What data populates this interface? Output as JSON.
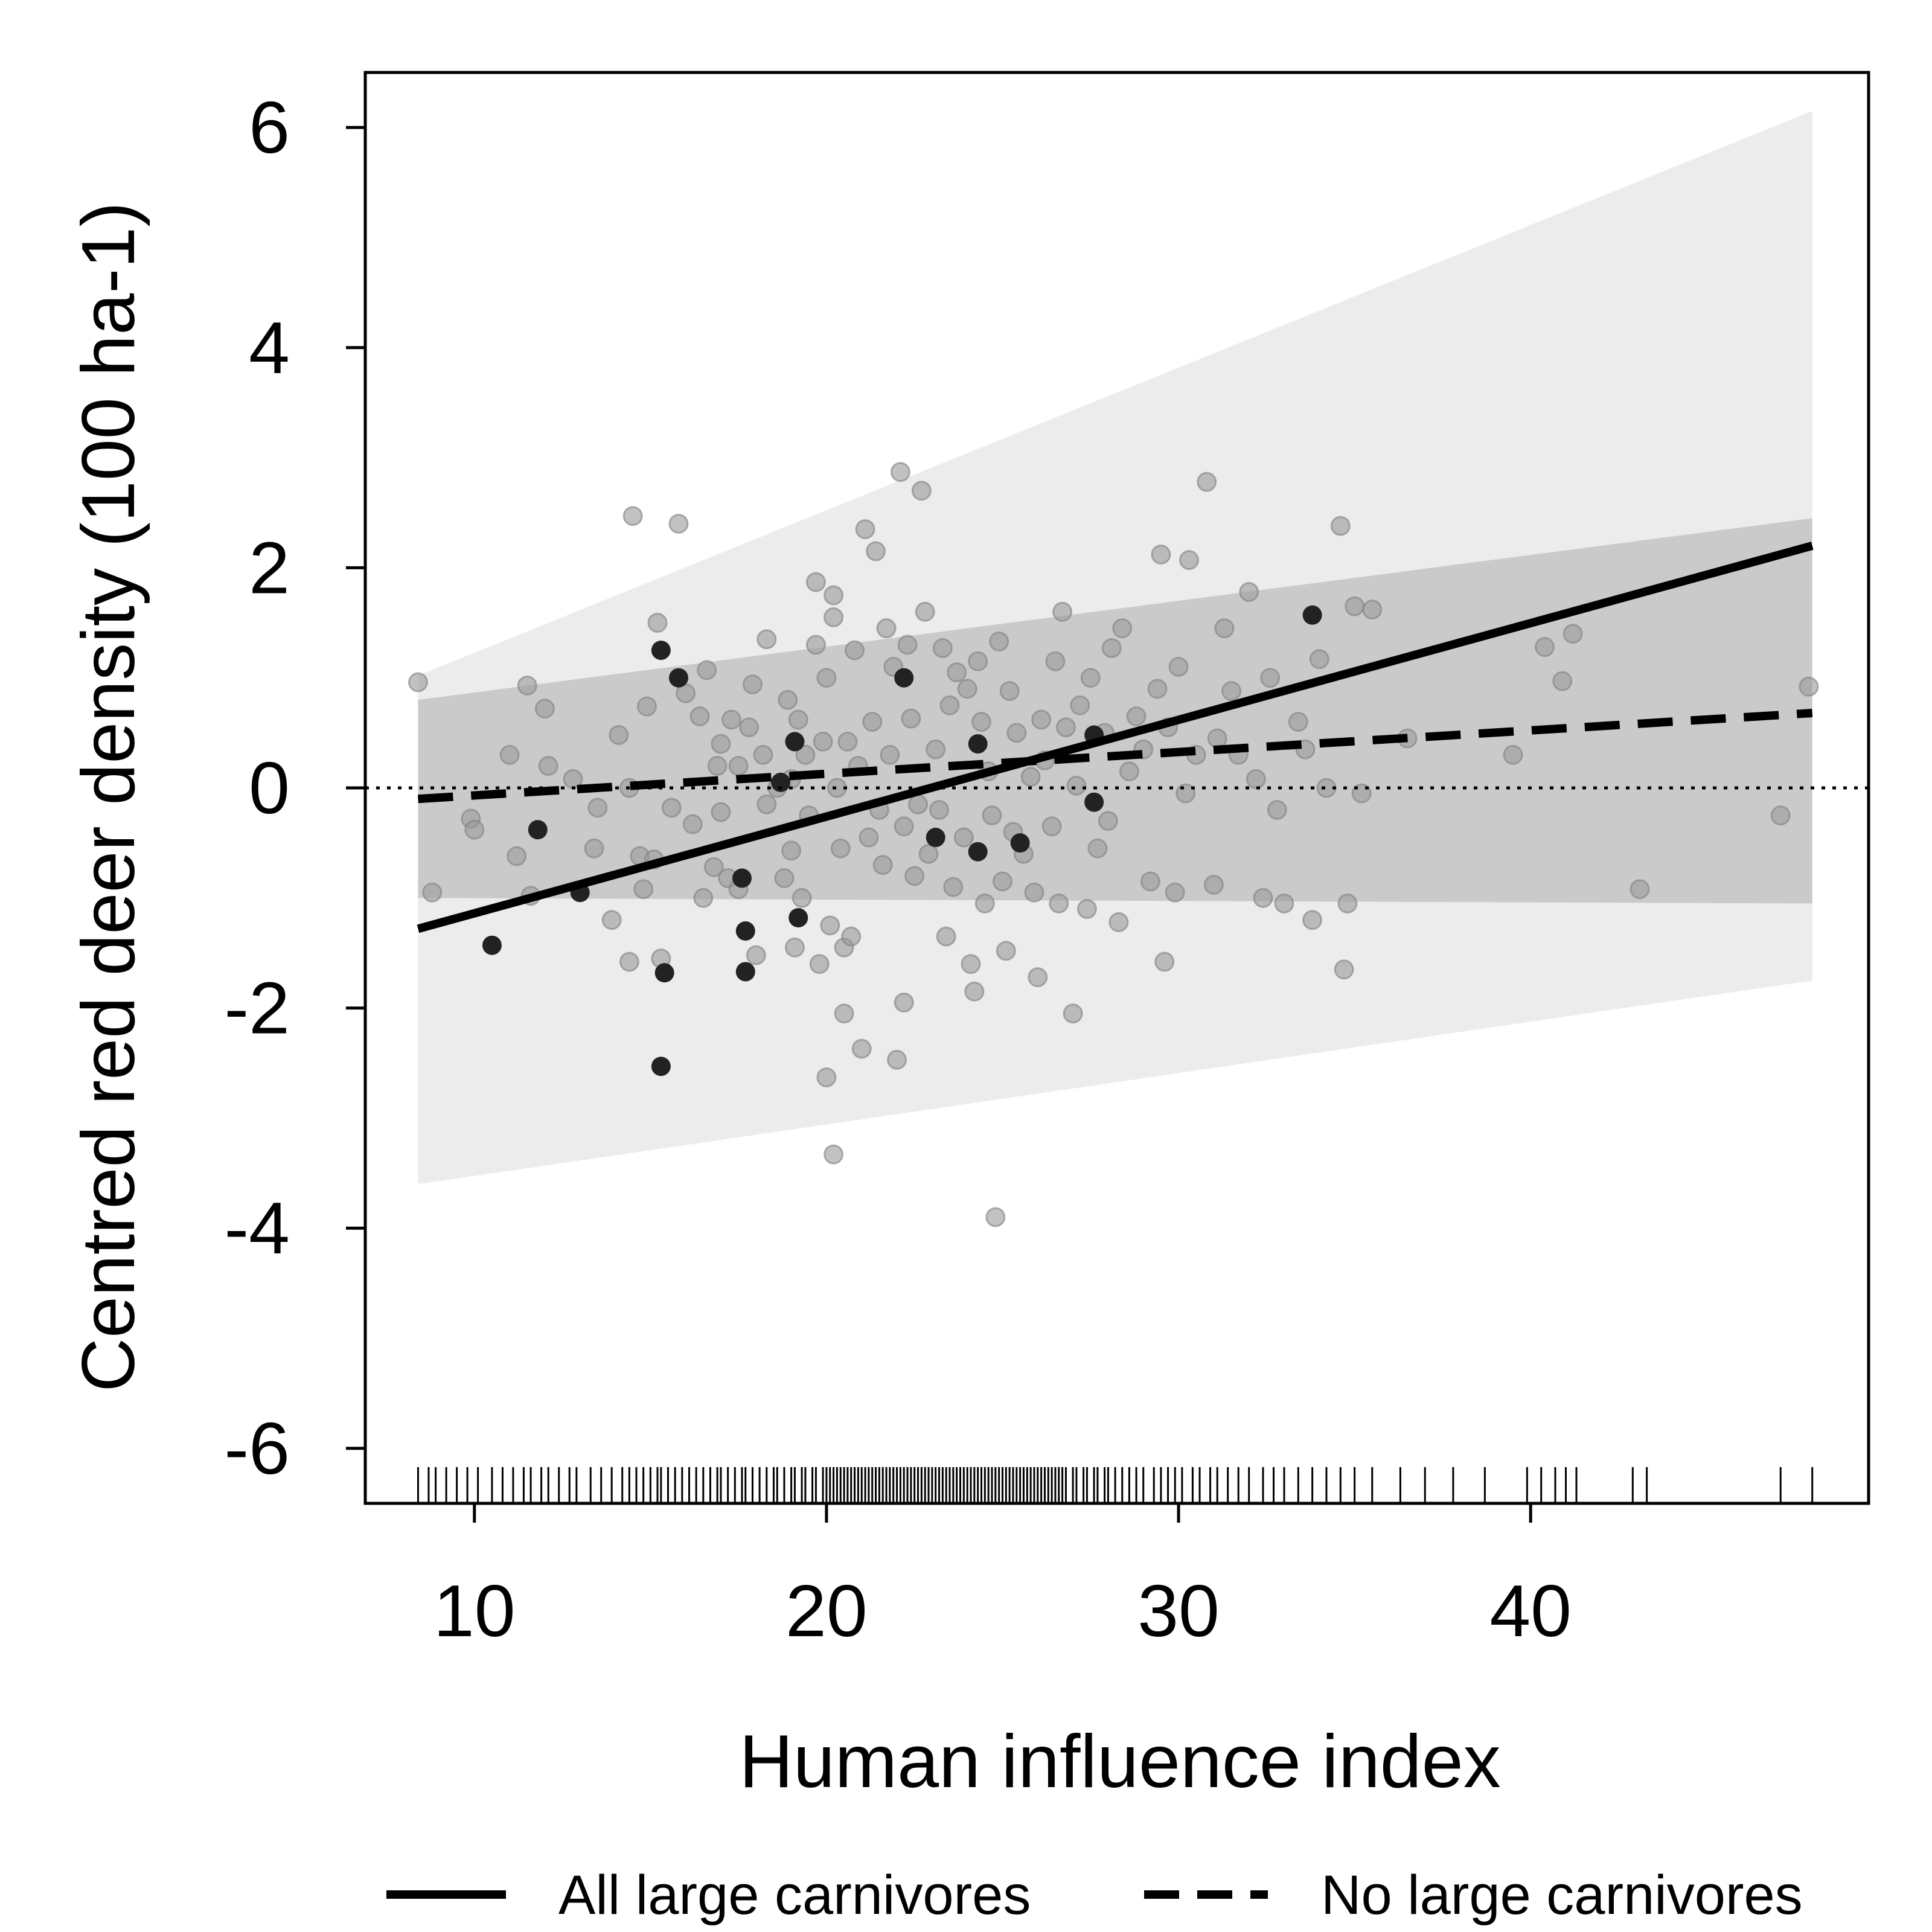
{
  "chart_data": {
    "type": "scatter",
    "xlabel": "Human influence index",
    "ylabel": "Centred red deer density (100 ha-1)",
    "xlim": [
      6.9,
      49.6
    ],
    "ylim": [
      -6.5,
      6.5
    ],
    "xticks": [
      10,
      20,
      30,
      40
    ],
    "yticks": [
      -6,
      -4,
      -2,
      0,
      2,
      4,
      6
    ],
    "reference_line_y": 0,
    "grid": false,
    "legend_position": "bottom",
    "colors": {
      "points_light": "#9a9a9a",
      "points_dark": "#222222",
      "band_light": "#ececec",
      "band_dark": "#c4c4c4",
      "line": "#000000"
    },
    "series": [
      {
        "name": "All large carnivores",
        "line_style": "solid",
        "x": [
          8.4,
          48.0
        ],
        "fit": [
          -1.28,
          2.2
        ],
        "ci_lower": [
          -3.6,
          -1.75
        ],
        "ci_upper": [
          1.02,
          6.15
        ]
      },
      {
        "name": "No large carnivores",
        "line_style": "dashed",
        "x": [
          8.4,
          48.0
        ],
        "fit": [
          -0.1,
          0.68
        ],
        "ci_lower": [
          -1.0,
          -1.05
        ],
        "ci_upper": [
          0.8,
          2.45
        ]
      }
    ],
    "points_dark": [
      [
        10.5,
        -1.43
      ],
      [
        11.8,
        -0.38
      ],
      [
        13.0,
        -0.95
      ],
      [
        15.3,
        1.25
      ],
      [
        15.4,
        -1.68
      ],
      [
        15.8,
        1.0
      ],
      [
        15.3,
        -2.53
      ],
      [
        17.6,
        -0.82
      ],
      [
        17.7,
        -1.3
      ],
      [
        17.7,
        -1.67
      ],
      [
        18.7,
        0.05
      ],
      [
        19.1,
        0.42
      ],
      [
        19.2,
        -1.18
      ],
      [
        22.2,
        1.0
      ],
      [
        23.1,
        -0.45
      ],
      [
        24.3,
        0.4
      ],
      [
        24.3,
        -0.58
      ],
      [
        25.5,
        -0.5
      ],
      [
        27.6,
        0.48
      ],
      [
        27.6,
        -0.13
      ],
      [
        33.8,
        1.57
      ]
    ],
    "points_light": [
      [
        8.4,
        0.96
      ],
      [
        8.8,
        -0.95
      ],
      [
        9.9,
        -0.28
      ],
      [
        10.0,
        -0.38
      ],
      [
        11.0,
        0.3
      ],
      [
        11.2,
        -0.62
      ],
      [
        11.5,
        0.93
      ],
      [
        11.6,
        -0.98
      ],
      [
        12.0,
        0.72
      ],
      [
        12.1,
        0.2
      ],
      [
        12.8,
        0.08
      ],
      [
        13.4,
        -0.55
      ],
      [
        13.5,
        -0.18
      ],
      [
        13.9,
        -1.2
      ],
      [
        14.1,
        0.48
      ],
      [
        14.4,
        0.0
      ],
      [
        14.4,
        -1.58
      ],
      [
        14.5,
        2.47
      ],
      [
        14.7,
        -0.62
      ],
      [
        14.8,
        -0.92
      ],
      [
        14.9,
        0.74
      ],
      [
        15.1,
        -0.65
      ],
      [
        15.2,
        1.5
      ],
      [
        15.3,
        -1.55
      ],
      [
        15.6,
        -0.18
      ],
      [
        15.8,
        2.4
      ],
      [
        16.0,
        0.86
      ],
      [
        16.2,
        -0.33
      ],
      [
        16.4,
        0.65
      ],
      [
        16.5,
        -1.0
      ],
      [
        16.6,
        1.07
      ],
      [
        16.8,
        -0.72
      ],
      [
        16.9,
        0.2
      ],
      [
        17.0,
        -0.22
      ],
      [
        17.0,
        0.4
      ],
      [
        17.2,
        -0.82
      ],
      [
        17.3,
        0.62
      ],
      [
        17.5,
        0.2
      ],
      [
        17.5,
        -0.92
      ],
      [
        17.8,
        0.55
      ],
      [
        17.9,
        0.94
      ],
      [
        18.0,
        -1.52
      ],
      [
        18.2,
        0.3
      ],
      [
        18.3,
        -0.15
      ],
      [
        18.3,
        1.35
      ],
      [
        18.6,
        0.0
      ],
      [
        18.8,
        -0.82
      ],
      [
        18.9,
        0.8
      ],
      [
        19.0,
        0.08
      ],
      [
        19.0,
        -0.57
      ],
      [
        19.1,
        -1.45
      ],
      [
        19.2,
        0.62
      ],
      [
        19.3,
        -1.0
      ],
      [
        19.4,
        0.3
      ],
      [
        19.5,
        -0.25
      ],
      [
        19.7,
        1.87
      ],
      [
        19.7,
        1.3
      ],
      [
        19.8,
        -1.6
      ],
      [
        19.9,
        0.42
      ],
      [
        20.0,
        -2.63
      ],
      [
        20.0,
        1.0
      ],
      [
        20.1,
        -1.25
      ],
      [
        20.2,
        1.75
      ],
      [
        20.2,
        1.55
      ],
      [
        20.2,
        -3.33
      ],
      [
        20.3,
        0.0
      ],
      [
        20.4,
        -0.55
      ],
      [
        20.5,
        -1.45
      ],
      [
        20.5,
        -2.05
      ],
      [
        20.6,
        0.42
      ],
      [
        20.7,
        -1.35
      ],
      [
        20.8,
        1.25
      ],
      [
        20.9,
        0.2
      ],
      [
        21.0,
        -2.37
      ],
      [
        21.1,
        2.35
      ],
      [
        21.2,
        -0.45
      ],
      [
        21.3,
        0.6
      ],
      [
        21.4,
        2.15
      ],
      [
        21.5,
        -0.2
      ],
      [
        21.6,
        -0.7
      ],
      [
        21.7,
        1.45
      ],
      [
        21.8,
        0.3
      ],
      [
        21.9,
        1.1
      ],
      [
        22.0,
        -2.47
      ],
      [
        22.1,
        2.87
      ],
      [
        22.2,
        -0.35
      ],
      [
        22.2,
        -1.95
      ],
      [
        22.3,
        1.3
      ],
      [
        22.4,
        0.63
      ],
      [
        22.5,
        -0.8
      ],
      [
        22.6,
        -0.15
      ],
      [
        22.7,
        2.7
      ],
      [
        22.8,
        1.6
      ],
      [
        22.9,
        -0.6
      ],
      [
        23.1,
        0.35
      ],
      [
        23.2,
        -0.2
      ],
      [
        23.3,
        1.27
      ],
      [
        23.4,
        -1.35
      ],
      [
        23.5,
        0.75
      ],
      [
        23.6,
        -0.9
      ],
      [
        23.7,
        1.05
      ],
      [
        23.9,
        -0.45
      ],
      [
        24.0,
        0.9
      ],
      [
        24.1,
        -1.6
      ],
      [
        24.2,
        -1.85
      ],
      [
        24.3,
        1.15
      ],
      [
        24.4,
        0.6
      ],
      [
        24.5,
        -1.05
      ],
      [
        24.6,
        0.15
      ],
      [
        24.7,
        -0.25
      ],
      [
        24.8,
        -3.9
      ],
      [
        24.9,
        1.33
      ],
      [
        25.0,
        -0.85
      ],
      [
        25.1,
        -1.48
      ],
      [
        25.2,
        0.88
      ],
      [
        25.3,
        -0.4
      ],
      [
        25.4,
        0.5
      ],
      [
        25.6,
        -0.6
      ],
      [
        25.8,
        0.1
      ],
      [
        25.9,
        -0.95
      ],
      [
        26.0,
        -1.72
      ],
      [
        26.1,
        0.62
      ],
      [
        26.2,
        0.25
      ],
      [
        26.4,
        -0.35
      ],
      [
        26.5,
        1.15
      ],
      [
        26.6,
        -1.05
      ],
      [
        26.7,
        1.6
      ],
      [
        26.8,
        0.55
      ],
      [
        27.0,
        -2.05
      ],
      [
        27.1,
        0.02
      ],
      [
        27.2,
        0.75
      ],
      [
        27.4,
        -1.1
      ],
      [
        27.5,
        1.0
      ],
      [
        27.7,
        -0.55
      ],
      [
        27.9,
        0.5
      ],
      [
        28.0,
        -0.3
      ],
      [
        28.1,
        1.27
      ],
      [
        28.3,
        -1.22
      ],
      [
        28.4,
        1.45
      ],
      [
        28.6,
        0.15
      ],
      [
        28.8,
        0.65
      ],
      [
        29.0,
        0.35
      ],
      [
        29.2,
        -0.85
      ],
      [
        29.4,
        0.9
      ],
      [
        29.5,
        2.12
      ],
      [
        29.6,
        -1.58
      ],
      [
        29.7,
        0.55
      ],
      [
        29.9,
        -0.95
      ],
      [
        30.0,
        1.1
      ],
      [
        30.2,
        -0.05
      ],
      [
        30.3,
        2.07
      ],
      [
        30.5,
        0.3
      ],
      [
        30.8,
        2.78
      ],
      [
        31.0,
        -0.88
      ],
      [
        31.1,
        0.45
      ],
      [
        31.3,
        1.45
      ],
      [
        31.5,
        0.88
      ],
      [
        31.7,
        0.3
      ],
      [
        32.0,
        1.78
      ],
      [
        32.2,
        0.08
      ],
      [
        32.4,
        -1.0
      ],
      [
        32.6,
        1.0
      ],
      [
        32.8,
        -0.2
      ],
      [
        33.0,
        -1.05
      ],
      [
        33.4,
        0.6
      ],
      [
        33.6,
        0.35
      ],
      [
        33.8,
        -1.2
      ],
      [
        34.0,
        1.17
      ],
      [
        34.2,
        0.0
      ],
      [
        34.6,
        2.38
      ],
      [
        34.7,
        -1.65
      ],
      [
        34.8,
        -1.05
      ],
      [
        35.0,
        1.65
      ],
      [
        35.2,
        -0.05
      ],
      [
        35.5,
        1.62
      ],
      [
        36.5,
        0.45
      ],
      [
        39.5,
        0.3
      ],
      [
        40.4,
        1.28
      ],
      [
        40.9,
        0.97
      ],
      [
        41.2,
        1.4
      ],
      [
        43.1,
        -0.92
      ],
      [
        47.1,
        -0.25
      ],
      [
        47.9,
        0.92
      ]
    ],
    "rug_x": [
      8.4,
      8.7,
      8.9,
      9.2,
      9.5,
      9.8,
      10.1,
      10.5,
      10.8,
      11.1,
      11.4,
      11.6,
      11.9,
      12.1,
      12.4,
      12.7,
      12.9,
      13.3,
      13.6,
      13.9,
      14.2,
      14.4,
      14.6,
      14.8,
      15.0,
      15.2,
      15.3,
      15.5,
      15.7,
      15.9,
      16.1,
      16.3,
      16.5,
      16.7,
      16.9,
      17.0,
      17.2,
      17.4,
      17.6,
      17.7,
      17.9,
      18.1,
      18.3,
      18.5,
      18.6,
      18.8,
      19.0,
      19.1,
      19.3,
      19.4,
      19.6,
      19.7,
      19.9,
      20.0,
      20.1,
      20.2,
      20.3,
      20.4,
      20.5,
      20.6,
      20.7,
      20.8,
      20.9,
      21.0,
      21.1,
      21.2,
      21.3,
      21.4,
      21.5,
      21.6,
      21.7,
      21.8,
      21.9,
      22.0,
      22.1,
      22.2,
      22.3,
      22.4,
      22.5,
      22.6,
      22.7,
      22.8,
      22.9,
      23.0,
      23.1,
      23.2,
      23.3,
      23.4,
      23.5,
      23.6,
      23.7,
      23.8,
      23.9,
      24.0,
      24.1,
      24.2,
      24.3,
      24.4,
      24.5,
      24.6,
      24.7,
      24.8,
      24.9,
      25.0,
      25.1,
      25.2,
      25.3,
      25.4,
      25.5,
      25.6,
      25.7,
      25.8,
      25.9,
      26.0,
      26.1,
      26.2,
      26.3,
      26.4,
      26.5,
      26.6,
      26.7,
      26.8,
      27.0,
      27.1,
      27.3,
      27.4,
      27.6,
      27.7,
      27.9,
      28.0,
      28.2,
      28.4,
      28.6,
      28.8,
      29.0,
      29.3,
      29.5,
      29.7,
      29.9,
      30.1,
      30.4,
      30.6,
      30.9,
      31.1,
      31.4,
      31.7,
      32.0,
      32.4,
      32.7,
      33.0,
      33.4,
      33.8,
      34.2,
      34.6,
      35.0,
      35.5,
      36.3,
      37.0,
      37.8,
      38.7,
      39.9,
      40.3,
      40.7,
      41.0,
      41.3,
      42.9,
      43.3,
      47.1,
      48.0
    ]
  },
  "legend": {
    "solid_label": "All large carnivores",
    "dashed_label": "No large carnivores"
  }
}
